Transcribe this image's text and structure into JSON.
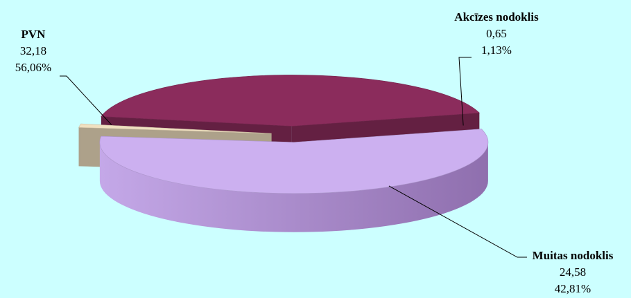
{
  "chart_data": {
    "type": "pie",
    "style": "3d-exploded",
    "legend": "none",
    "background": "#ccffff",
    "slices": [
      {
        "label": "PVN",
        "value": 32.18,
        "value_text": "32,18",
        "percent_text": "56,06%",
        "color": "#ccb0f0"
      },
      {
        "label": "Akcīzes nodoklis",
        "value": 0.65,
        "value_text": "0,65",
        "percent_text": "1,13%",
        "color": "#f0e0c0"
      },
      {
        "label": "Muitas nodoklis",
        "value": 24.58,
        "value_text": "24,58",
        "percent_text": "42,81%",
        "color": "#8b2c5c"
      }
    ]
  }
}
